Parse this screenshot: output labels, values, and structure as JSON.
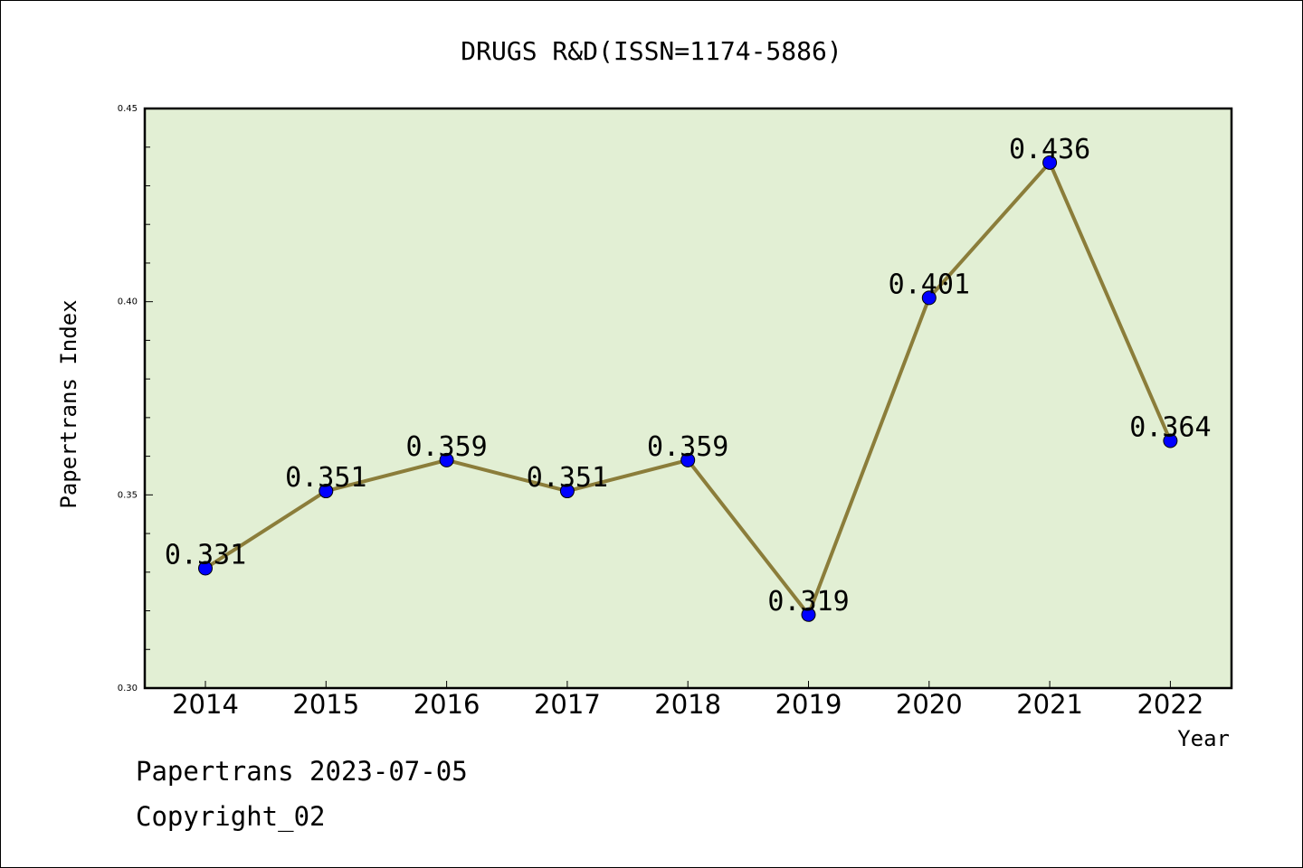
{
  "chart_data": {
    "type": "line",
    "title": "DRUGS R&D(ISSN=1174-5886)",
    "xlabel": "Year",
    "ylabel": "Papertrans Index",
    "categories": [
      "2014",
      "2015",
      "2016",
      "2017",
      "2018",
      "2019",
      "2020",
      "2021",
      "2022"
    ],
    "values": [
      0.331,
      0.351,
      0.359,
      0.351,
      0.359,
      0.319,
      0.401,
      0.436,
      0.364
    ],
    "data_labels": [
      "0.331",
      "0.351",
      "0.359",
      "0.351",
      "0.359",
      "0.319",
      "0.401",
      "0.436",
      "0.364"
    ],
    "ylim": [
      0.3,
      0.45
    ],
    "yticks": [
      "0.30",
      "0.35",
      "0.40",
      "0.45"
    ],
    "grid": false,
    "colors": {
      "plot_background": "#e2efd4",
      "line": "#8b7d3a",
      "marker": "#0000ff"
    }
  },
  "footer": {
    "line1": "Papertrans 2023-07-05",
    "line2": "Copyright_02"
  }
}
